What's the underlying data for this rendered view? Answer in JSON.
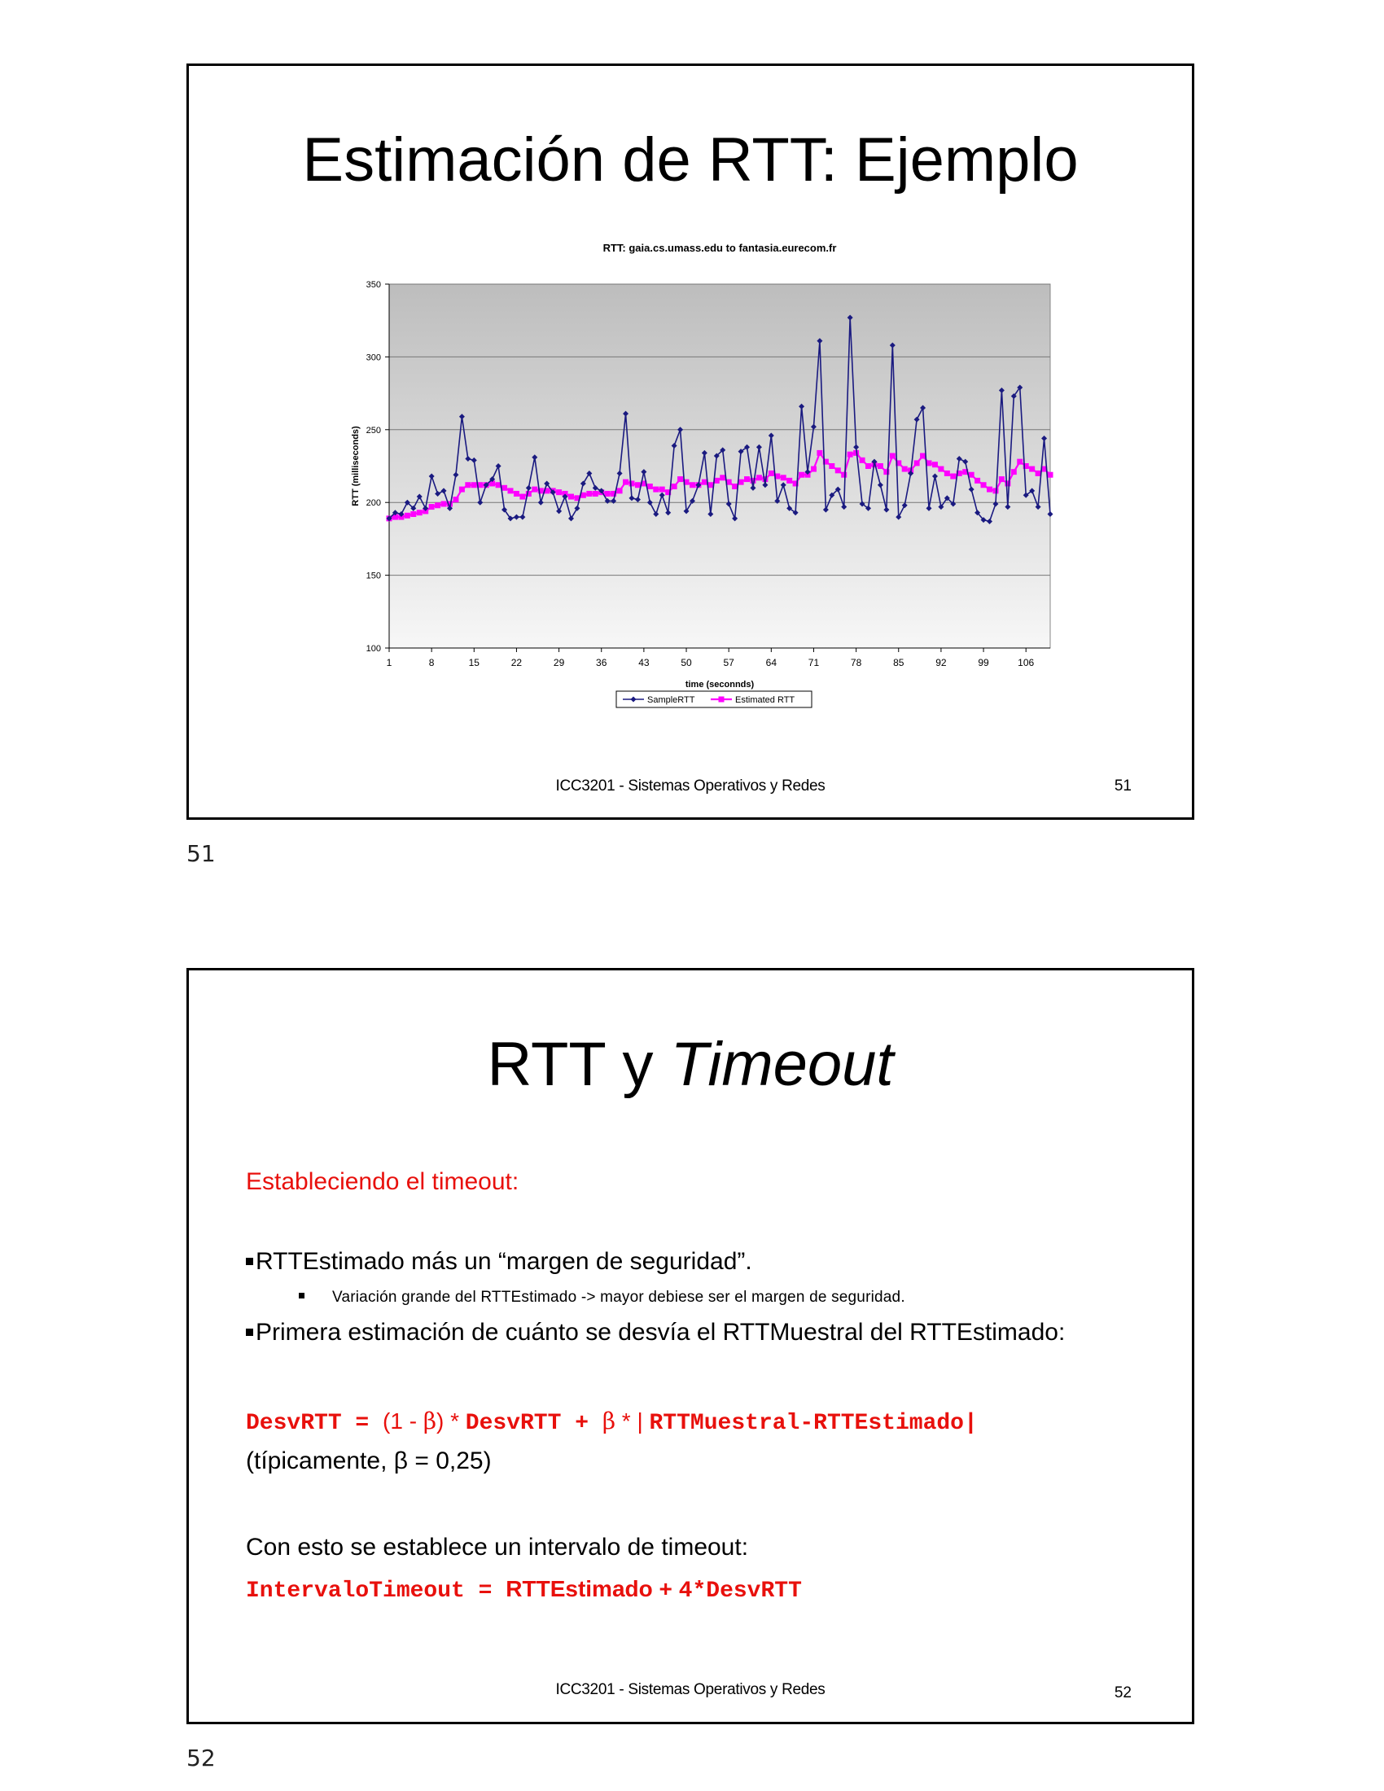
{
  "slide1": {
    "title": "Estimación de RTT: Ejemplo",
    "footer": "ICC3201 - Sistemas Operativos y Redes",
    "slide_number": "51",
    "page_number": "51"
  },
  "slide2": {
    "title_plain": "RTT y ",
    "title_italic": "Timeout",
    "subtitle": "Estableciendo el timeout:",
    "bullet1": "RTTEstimado más un “margen de seguridad”.",
    "sub_bullet": "Variación grande del RTTEstimado -> mayor debiese ser el margen de seguridad.",
    "bullet2": "Primera estimación de cuánto se desvía el RTTMuestral del RTTEstimado:",
    "formula1": {
      "part_a": "DesvRTT = ",
      "part_b": "(1 - ",
      "beta": "β",
      "part_c": ") * ",
      "part_d": "DesvRTT + ",
      "part_e": " * | ",
      "part_f": "RTTMuestral-RTTEstimado|"
    },
    "typical": "(típicamente, β = 0,25)",
    "timeout_intro": "Con esto se establece un intervalo de timeout:",
    "formula2": {
      "part_a": "IntervaloTimeout = ",
      "part_b": "RTTEstimado",
      "part_c": " + ",
      "part_d": "4*DesvRTT"
    },
    "footer": "ICC3201 - Sistemas Operativos y Redes",
    "slide_number": "52",
    "page_number": "52"
  },
  "colors": {
    "sample": "#1a1a80",
    "estimated": "#ff00ff",
    "accent_red": "#e8100c"
  },
  "chart_data": {
    "type": "line",
    "title": "RTT: gaia.cs.umass.edu to fantasia.eurecom.fr",
    "xlabel": "time (seconnds)",
    "ylabel": "RTT (milliseconds)",
    "ylim": [
      100,
      350
    ],
    "yticks": [
      100,
      150,
      200,
      250,
      300,
      350
    ],
    "xticks": [
      1,
      8,
      15,
      22,
      29,
      36,
      43,
      50,
      57,
      64,
      71,
      78,
      85,
      92,
      99,
      106
    ],
    "x_range": [
      1,
      110
    ],
    "grid": true,
    "legend": "bottom",
    "series": [
      {
        "name": "SampleRTT",
        "marker": "diamond",
        "values": [
          189,
          193,
          192,
          200,
          196,
          204,
          196,
          218,
          206,
          208,
          196,
          219,
          259,
          230,
          229,
          200,
          212,
          216,
          225,
          195,
          189,
          190,
          190,
          210,
          231,
          200,
          213,
          207,
          194,
          204,
          189,
          196,
          213,
          220,
          210,
          208,
          201,
          201,
          220,
          261,
          203,
          202,
          221,
          200,
          192,
          205,
          193,
          239,
          250,
          194,
          201,
          212,
          234,
          192,
          232,
          236,
          199,
          189,
          235,
          238,
          210,
          238,
          212,
          246,
          201,
          212,
          196,
          193,
          266,
          221,
          252,
          311,
          195,
          205,
          209,
          197,
          327,
          238,
          199,
          196,
          228,
          212,
          195,
          308,
          190,
          198,
          220,
          257,
          265,
          196,
          218,
          197,
          203,
          199,
          230,
          228,
          209,
          193,
          188,
          187,
          199,
          277,
          197,
          273,
          279,
          205,
          208,
          197,
          244,
          192
        ]
      },
      {
        "name": "Estimated RTT",
        "marker": "square",
        "values": [
          189,
          190,
          190,
          191,
          192,
          193,
          194,
          197,
          198,
          199,
          199,
          202,
          209,
          212,
          212,
          212,
          212,
          213,
          212,
          210,
          208,
          206,
          204,
          206,
          209,
          208,
          208,
          208,
          207,
          206,
          204,
          203,
          205,
          206,
          206,
          207,
          206,
          206,
          208,
          214,
          213,
          212,
          213,
          211,
          209,
          209,
          207,
          211,
          216,
          214,
          212,
          212,
          214,
          212,
          215,
          217,
          214,
          211,
          214,
          216,
          215,
          217,
          216,
          220,
          218,
          217,
          215,
          213,
          219,
          219,
          223,
          234,
          228,
          225,
          222,
          219,
          233,
          234,
          229,
          225,
          226,
          225,
          221,
          232,
          227,
          223,
          222,
          227,
          232,
          227,
          226,
          223,
          220,
          218,
          220,
          221,
          219,
          215,
          212,
          209,
          208,
          216,
          213,
          221,
          228,
          225,
          223,
          220,
          223,
          219
        ]
      }
    ]
  }
}
